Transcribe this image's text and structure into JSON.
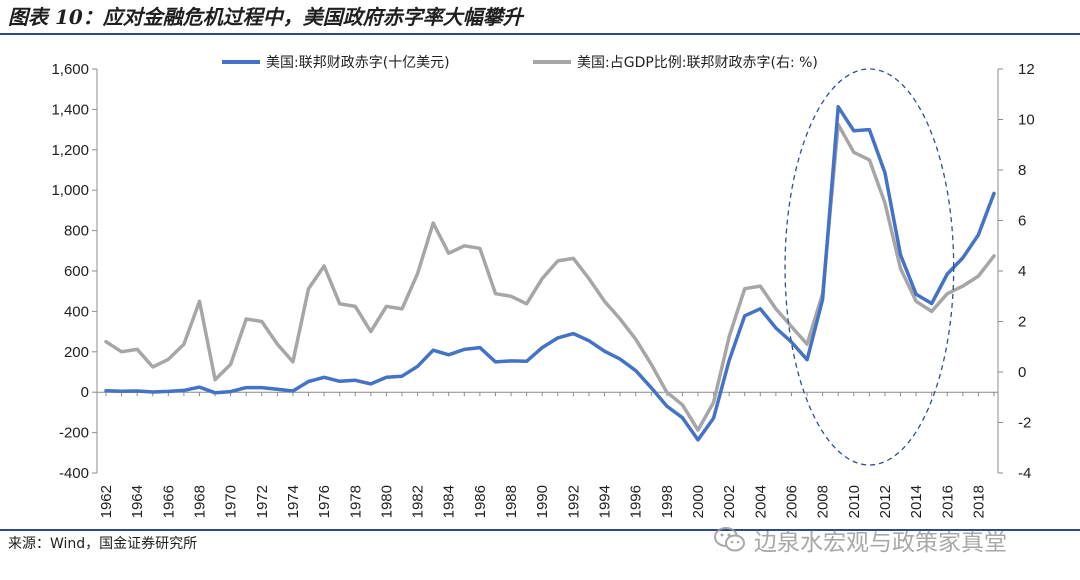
{
  "title": "图表 10：应对金融危机过程中，美国政府赤字率大幅攀升",
  "source": "来源：Wind，国金证券研究所",
  "watermark": "边泉水宏观与政策家真堂",
  "chart_data": {
    "type": "line",
    "x": [
      1962,
      1963,
      1964,
      1965,
      1966,
      1967,
      1968,
      1969,
      1970,
      1971,
      1972,
      1973,
      1974,
      1975,
      1976,
      1977,
      1978,
      1979,
      1980,
      1981,
      1982,
      1983,
      1984,
      1985,
      1986,
      1987,
      1988,
      1989,
      1990,
      1991,
      1992,
      1993,
      1994,
      1995,
      1996,
      1997,
      1998,
      1999,
      2000,
      2001,
      2002,
      2003,
      2004,
      2005,
      2006,
      2007,
      2008,
      2009,
      2010,
      2011,
      2012,
      2013,
      2014,
      2015,
      2016,
      2017,
      2018,
      2019
    ],
    "x_ticks": [
      "1962",
      "1964",
      "1966",
      "1968",
      "1970",
      "1972",
      "1974",
      "1976",
      "1978",
      "1980",
      "1982",
      "1984",
      "1986",
      "1988",
      "1990",
      "1992",
      "1994",
      "1996",
      "1998",
      "2000",
      "2002",
      "2004",
      "2006",
      "2008",
      "2010",
      "2012",
      "2014",
      "2016",
      "2018"
    ],
    "y_left": {
      "ticks": [
        "-400",
        "-200",
        "0",
        "200",
        "400",
        "600",
        "800",
        "1,000",
        "1,200",
        "1,400",
        "1,600"
      ],
      "ylim": [
        -400,
        1600
      ]
    },
    "y_right": {
      "ticks": [
        "-4",
        "-2",
        "0",
        "2",
        "4",
        "6",
        "8",
        "10",
        "12"
      ],
      "ylim": [
        -4,
        12
      ]
    },
    "series": [
      {
        "name": "美国:联邦财政赤字(十亿美元)",
        "axis": "left",
        "color": "#4472c4",
        "values": [
          7,
          5,
          6,
          1,
          4,
          9,
          25,
          -3,
          3,
          23,
          23,
          15,
          6,
          53,
          74,
          54,
          59,
          41,
          74,
          79,
          128,
          208,
          185,
          212,
          221,
          150,
          155,
          153,
          221,
          269,
          290,
          255,
          203,
          164,
          107,
          22,
          -69,
          -126,
          -236,
          -128,
          158,
          378,
          413,
          318,
          248,
          161,
          459,
          1413,
          1294,
          1300,
          1087,
          680,
          485,
          439,
          585,
          665,
          779,
          984
        ]
      },
      {
        "name": "美国:占GDP比例:联邦财政赤字(右: %)",
        "axis": "right",
        "color": "#a6a6a6",
        "values": [
          1.2,
          0.8,
          0.9,
          0.2,
          0.5,
          1.1,
          2.8,
          -0.3,
          0.3,
          2.1,
          2.0,
          1.1,
          0.4,
          3.3,
          4.2,
          2.7,
          2.6,
          1.6,
          2.6,
          2.5,
          3.9,
          5.9,
          4.7,
          5.0,
          4.9,
          3.1,
          3.0,
          2.7,
          3.7,
          4.4,
          4.5,
          3.7,
          2.8,
          2.1,
          1.3,
          0.3,
          -0.8,
          -1.3,
          -2.3,
          -1.2,
          1.4,
          3.3,
          3.4,
          2.5,
          1.8,
          1.1,
          3.1,
          9.8,
          8.7,
          8.4,
          6.7,
          4.1,
          2.8,
          2.4,
          3.1,
          3.4,
          3.8,
          4.6
        ]
      }
    ],
    "annotation": {
      "type": "dashed-ellipse",
      "x_range": [
        2007,
        2015
      ],
      "meaning": "highlight"
    },
    "legend_position": "top-center",
    "grid": false
  }
}
